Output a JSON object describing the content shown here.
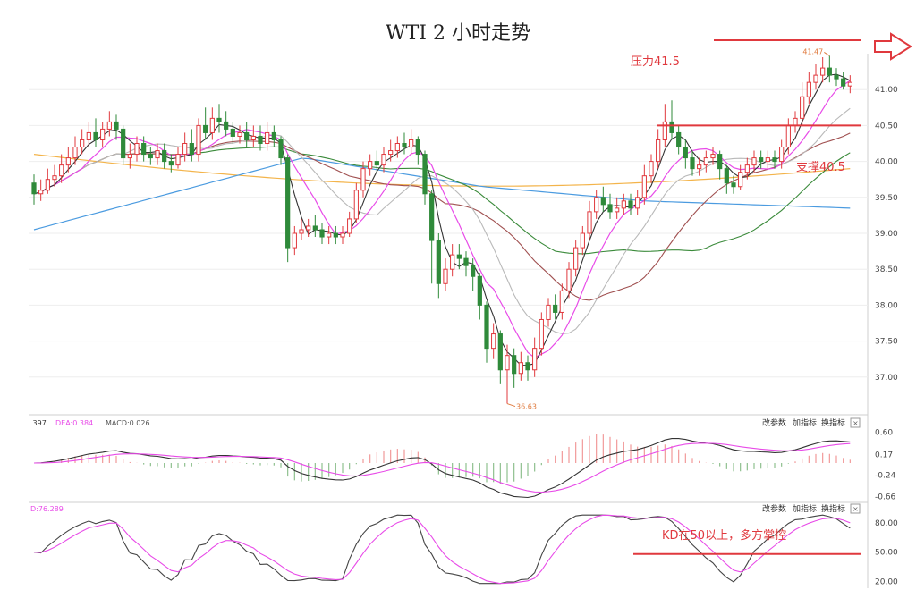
{
  "chart_data": {
    "type": "candlestick",
    "title": "WTI 2 小时走势",
    "price_panel": {
      "y_ticks": [
        "41.00",
        "40.50",
        "40.00",
        "39.50",
        "39.00",
        "38.50",
        "38.00",
        "37.50",
        "37.00"
      ],
      "y_range": [
        36.5,
        41.5
      ],
      "high_label": "41.47",
      "low_label": "36.63",
      "candles": [
        [
          39.7,
          39.55,
          39.82,
          39.4
        ],
        [
          39.55,
          39.6,
          39.75,
          39.45
        ],
        [
          39.6,
          39.75,
          39.9,
          39.55
        ],
        [
          39.75,
          39.8,
          39.95,
          39.65
        ],
        [
          39.8,
          39.95,
          40.1,
          39.7
        ],
        [
          39.95,
          40.05,
          40.2,
          39.85
        ],
        [
          40.05,
          40.2,
          40.35,
          39.95
        ],
        [
          40.2,
          40.3,
          40.45,
          40.1
        ],
        [
          40.3,
          40.4,
          40.55,
          40.2
        ],
        [
          40.4,
          40.3,
          40.6,
          40.2
        ],
        [
          40.3,
          40.45,
          40.55,
          40.2
        ],
        [
          40.45,
          40.55,
          40.7,
          40.35
        ],
        [
          40.55,
          40.45,
          40.65,
          40.3
        ],
        [
          40.45,
          40.05,
          40.5,
          39.95
        ],
        [
          40.05,
          40.1,
          40.25,
          39.9
        ],
        [
          40.1,
          40.25,
          40.35,
          40.0
        ],
        [
          40.25,
          40.1,
          40.35,
          40.0
        ],
        [
          40.1,
          40.05,
          40.2,
          39.95
        ],
        [
          40.05,
          40.15,
          40.25,
          39.95
        ],
        [
          40.15,
          40.0,
          40.25,
          39.9
        ],
        [
          40.0,
          39.95,
          40.1,
          39.85
        ],
        [
          39.95,
          40.1,
          40.2,
          39.9
        ],
        [
          40.1,
          40.25,
          40.4,
          40.0
        ],
        [
          40.25,
          40.1,
          40.45,
          40.0
        ],
        [
          40.1,
          40.5,
          40.6,
          40.0
        ],
        [
          40.5,
          40.4,
          40.75,
          40.3
        ],
        [
          40.4,
          40.6,
          40.75,
          40.3
        ],
        [
          40.6,
          40.55,
          40.8,
          40.4
        ],
        [
          40.55,
          40.45,
          40.7,
          40.35
        ],
        [
          40.45,
          40.35,
          40.55,
          40.25
        ],
        [
          40.35,
          40.4,
          40.5,
          40.25
        ],
        [
          40.4,
          40.3,
          40.55,
          40.2
        ],
        [
          40.3,
          40.35,
          40.5,
          40.2
        ],
        [
          40.35,
          40.25,
          40.5,
          40.15
        ],
        [
          40.25,
          40.4,
          40.55,
          40.15
        ],
        [
          40.4,
          40.3,
          40.5,
          40.2
        ],
        [
          40.3,
          40.05,
          40.35,
          39.95
        ],
        [
          40.05,
          38.8,
          40.1,
          38.6
        ],
        [
          38.8,
          39.0,
          39.1,
          38.7
        ],
        [
          39.0,
          39.05,
          39.2,
          38.9
        ],
        [
          39.05,
          39.1,
          39.2,
          38.95
        ],
        [
          39.1,
          39.05,
          39.25,
          38.95
        ],
        [
          39.05,
          38.95,
          39.15,
          38.85
        ],
        [
          38.95,
          39.0,
          39.1,
          38.85
        ],
        [
          39.0,
          38.95,
          39.1,
          38.85
        ],
        [
          38.95,
          39.0,
          39.1,
          38.85
        ],
        [
          39.0,
          39.2,
          39.3,
          38.95
        ],
        [
          39.2,
          39.6,
          39.7,
          39.15
        ],
        [
          39.6,
          39.9,
          40.0,
          39.5
        ],
        [
          39.9,
          40.0,
          40.1,
          39.8
        ],
        [
          40.0,
          39.95,
          40.15,
          39.85
        ],
        [
          39.95,
          40.1,
          40.2,
          39.85
        ],
        [
          40.1,
          40.15,
          40.3,
          40.0
        ],
        [
          40.15,
          40.25,
          40.35,
          40.05
        ],
        [
          40.25,
          40.2,
          40.4,
          40.1
        ],
        [
          40.2,
          40.3,
          40.45,
          40.1
        ],
        [
          40.3,
          40.1,
          40.35,
          39.95
        ],
        [
          40.1,
          39.55,
          40.15,
          39.4
        ],
        [
          39.55,
          38.9,
          39.6,
          38.3
        ],
        [
          38.9,
          38.3,
          39.0,
          38.1
        ],
        [
          38.3,
          38.5,
          38.65,
          38.2
        ],
        [
          38.5,
          38.7,
          38.85,
          38.4
        ],
        [
          38.7,
          38.65,
          38.85,
          38.5
        ],
        [
          38.65,
          38.55,
          38.75,
          38.4
        ],
        [
          38.55,
          38.4,
          38.65,
          38.2
        ],
        [
          38.4,
          38.0,
          38.45,
          37.8
        ],
        [
          38.0,
          37.4,
          38.05,
          37.2
        ],
        [
          37.4,
          37.6,
          37.75,
          37.25
        ],
        [
          37.6,
          37.1,
          37.65,
          36.9
        ],
        [
          37.1,
          37.3,
          37.45,
          36.63
        ],
        [
          37.3,
          37.05,
          37.4,
          36.85
        ],
        [
          37.05,
          37.2,
          37.35,
          36.95
        ],
        [
          37.2,
          37.1,
          37.3,
          36.95
        ],
        [
          37.1,
          37.4,
          37.55,
          37.0
        ],
        [
          37.4,
          37.8,
          37.9,
          37.3
        ],
        [
          37.8,
          38.0,
          38.1,
          37.7
        ],
        [
          38.0,
          37.9,
          38.15,
          37.8
        ],
        [
          37.9,
          38.2,
          38.3,
          37.8
        ],
        [
          38.2,
          38.5,
          38.6,
          38.1
        ],
        [
          38.5,
          38.8,
          38.9,
          38.4
        ],
        [
          38.8,
          39.0,
          39.1,
          38.7
        ],
        [
          39.0,
          39.3,
          39.45,
          38.9
        ],
        [
          39.3,
          39.5,
          39.6,
          39.2
        ],
        [
          39.5,
          39.4,
          39.65,
          39.3
        ],
        [
          39.4,
          39.3,
          39.55,
          39.2
        ],
        [
          39.3,
          39.35,
          39.5,
          39.2
        ],
        [
          39.35,
          39.45,
          39.55,
          39.25
        ],
        [
          39.45,
          39.35,
          39.55,
          39.25
        ],
        [
          39.35,
          39.5,
          39.6,
          39.25
        ],
        [
          39.5,
          39.8,
          39.95,
          39.4
        ],
        [
          39.8,
          40.0,
          40.1,
          39.7
        ],
        [
          40.0,
          40.3,
          40.45,
          39.9
        ],
        [
          40.3,
          40.55,
          40.8,
          40.2
        ],
        [
          40.55,
          40.4,
          40.85,
          40.3
        ],
        [
          40.4,
          40.2,
          40.5,
          40.1
        ],
        [
          40.2,
          40.05,
          40.3,
          39.9
        ],
        [
          40.05,
          39.9,
          40.15,
          39.8
        ],
        [
          39.9,
          39.95,
          40.05,
          39.8
        ],
        [
          39.95,
          40.05,
          40.15,
          39.85
        ],
        [
          40.05,
          40.1,
          40.2,
          39.95
        ],
        [
          40.1,
          39.9,
          40.15,
          39.75
        ],
        [
          39.9,
          39.7,
          39.95,
          39.55
        ],
        [
          39.7,
          39.65,
          39.8,
          39.55
        ],
        [
          39.65,
          39.85,
          39.95,
          39.6
        ],
        [
          39.85,
          39.95,
          40.05,
          39.75
        ],
        [
          39.95,
          40.05,
          40.15,
          39.85
        ],
        [
          40.05,
          40.0,
          40.15,
          39.9
        ],
        [
          40.0,
          40.05,
          40.15,
          39.9
        ],
        [
          40.05,
          40.0,
          40.15,
          39.9
        ],
        [
          40.0,
          40.2,
          40.3,
          39.9
        ],
        [
          40.2,
          40.5,
          40.6,
          40.1
        ],
        [
          40.5,
          40.6,
          40.7,
          40.4
        ],
        [
          40.6,
          40.9,
          41.1,
          40.5
        ],
        [
          40.9,
          41.1,
          41.25,
          40.8
        ],
        [
          41.1,
          41.2,
          41.35,
          41.0
        ],
        [
          41.2,
          41.3,
          41.45,
          41.1
        ],
        [
          41.3,
          41.2,
          41.47,
          41.1
        ],
        [
          41.2,
          41.15,
          41.3,
          41.05
        ],
        [
          41.15,
          41.05,
          41.25,
          41.0
        ],
        [
          41.05,
          41.1,
          41.2,
          40.95
        ]
      ],
      "resistance_label": "压力41.5",
      "support_label": "支撑40.5",
      "resistance_level": 41.5,
      "support_level": 40.5
    },
    "macd_panel": {
      "header_dif": ".397",
      "header_dea": "DEA:0.384",
      "header_macd": "MACD:0.026",
      "y_ticks": [
        "0.60",
        "0.17",
        "-0.24",
        "-0.66"
      ],
      "y_range": [
        -0.7,
        0.7
      ]
    },
    "kd_panel": {
      "header": "D:76.289",
      "y_ticks": [
        "80.00",
        "50.00",
        "20.00"
      ],
      "y_range": [
        15,
        90
      ],
      "annotation": "KD在50以上，多方掌控",
      "level": 50
    },
    "buttons": [
      "改参数",
      "加指标",
      "换指标"
    ],
    "colors": {
      "up": "#e0393e",
      "down": "#2f8a3a",
      "ann": "#e0393e",
      "ma5": "#333333",
      "ma10": "#e84be8",
      "ma20": "#b9b9b9",
      "ma30": "#a05050",
      "ma60": "#3a8a3a",
      "ma120": "#4b9be0",
      "ma250": "#f3b44b"
    }
  }
}
